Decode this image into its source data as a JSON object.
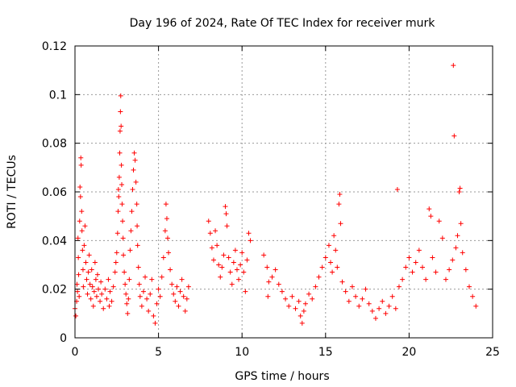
{
  "chart_data": {
    "type": "scatter",
    "title": "Day 196 of 2024, Rate Of TEC Index for receiver murk",
    "xlabel": "GPS time / hours",
    "ylabel": "ROTI / TECUs",
    "xlim": [
      0,
      25
    ],
    "ylim": [
      0,
      0.12
    ],
    "x_ticks": [
      0,
      5,
      10,
      15,
      20,
      25
    ],
    "x_tick_labels": [
      "0",
      "5",
      "10",
      "15",
      "20",
      "25"
    ],
    "y_ticks": [
      0,
      0.02,
      0.04,
      0.06,
      0.08,
      0.1,
      0.12
    ],
    "y_tick_labels": [
      "0",
      "0.02",
      "0.04",
      "0.06",
      "0.08",
      "0.1",
      "0.12"
    ],
    "grid": true,
    "marker": "plus",
    "color": "#ff0000",
    "series": [
      {
        "name": "ROTI",
        "points": [
          [
            0.0,
            0.012
          ],
          [
            0.05,
            0.009
          ],
          [
            0.1,
            0.015
          ],
          [
            0.12,
            0.022
          ],
          [
            0.15,
            0.019
          ],
          [
            0.18,
            0.041
          ],
          [
            0.2,
            0.033
          ],
          [
            0.22,
            0.026
          ],
          [
            0.25,
            0.017
          ],
          [
            0.28,
            0.048
          ],
          [
            0.3,
            0.062
          ],
          [
            0.33,
            0.058
          ],
          [
            0.35,
            0.074
          ],
          [
            0.37,
            0.071
          ],
          [
            0.4,
            0.052
          ],
          [
            0.42,
            0.044
          ],
          [
            0.45,
            0.036
          ],
          [
            0.48,
            0.028
          ],
          [
            0.5,
            0.021
          ],
          [
            0.55,
            0.038
          ],
          [
            0.6,
            0.046
          ],
          [
            0.65,
            0.031
          ],
          [
            0.7,
            0.024
          ],
          [
            0.75,
            0.018
          ],
          [
            0.8,
            0.027
          ],
          [
            0.85,
            0.034
          ],
          [
            0.9,
            0.022
          ],
          [
            0.95,
            0.016
          ],
          [
            1.0,
            0.028
          ],
          [
            1.05,
            0.021
          ],
          [
            1.1,
            0.013
          ],
          [
            1.15,
            0.019
          ],
          [
            1.2,
            0.031
          ],
          [
            1.25,
            0.024
          ],
          [
            1.3,
            0.017
          ],
          [
            1.35,
            0.026
          ],
          [
            1.4,
            0.02
          ],
          [
            1.5,
            0.015
          ],
          [
            1.55,
            0.023
          ],
          [
            1.6,
            0.018
          ],
          [
            1.7,
            0.012
          ],
          [
            1.8,
            0.02
          ],
          [
            1.9,
            0.016
          ],
          [
            2.0,
            0.024
          ],
          [
            2.05,
            0.013
          ],
          [
            2.1,
            0.019
          ],
          [
            2.2,
            0.015
          ],
          [
            2.3,
            0.021
          ],
          [
            2.4,
            0.027
          ],
          [
            2.45,
            0.031
          ],
          [
            2.5,
            0.035
          ],
          [
            2.55,
            0.043
          ],
          [
            2.58,
            0.052
          ],
          [
            2.6,
            0.061
          ],
          [
            2.62,
            0.058
          ],
          [
            2.65,
            0.066
          ],
          [
            2.68,
            0.076
          ],
          [
            2.7,
            0.085
          ],
          [
            2.72,
            0.093
          ],
          [
            2.74,
            0.0995
          ],
          [
            2.76,
            0.087
          ],
          [
            2.78,
            0.071
          ],
          [
            2.8,
            0.063
          ],
          [
            2.82,
            0.055
          ],
          [
            2.85,
            0.048
          ],
          [
            2.88,
            0.041
          ],
          [
            2.9,
            0.034
          ],
          [
            2.95,
            0.027
          ],
          [
            3.0,
            0.022
          ],
          [
            3.05,
            0.018
          ],
          [
            3.1,
            0.014
          ],
          [
            3.15,
            0.01
          ],
          [
            3.2,
            0.016
          ],
          [
            3.25,
            0.024
          ],
          [
            3.3,
            0.036
          ],
          [
            3.35,
            0.044
          ],
          [
            3.4,
            0.052
          ],
          [
            3.45,
            0.061
          ],
          [
            3.5,
            0.069
          ],
          [
            3.55,
            0.076
          ],
          [
            3.6,
            0.073
          ],
          [
            3.65,
            0.064
          ],
          [
            3.7,
            0.055
          ],
          [
            3.72,
            0.046
          ],
          [
            3.75,
            0.038
          ],
          [
            3.8,
            0.029
          ],
          [
            3.85,
            0.022
          ],
          [
            3.9,
            0.017
          ],
          [
            4.0,
            0.013
          ],
          [
            4.1,
            0.019
          ],
          [
            4.2,
            0.025
          ],
          [
            4.3,
            0.016
          ],
          [
            4.4,
            0.011
          ],
          [
            4.5,
            0.018
          ],
          [
            4.6,
            0.024
          ],
          [
            4.7,
            0.009
          ],
          [
            4.8,
            0.006
          ],
          [
            4.9,
            0.014
          ],
          [
            5.0,
            0.02
          ],
          [
            5.1,
            0.017
          ],
          [
            5.2,
            0.025
          ],
          [
            5.3,
            0.033
          ],
          [
            5.4,
            0.044
          ],
          [
            5.45,
            0.055
          ],
          [
            5.5,
            0.049
          ],
          [
            5.55,
            0.041
          ],
          [
            5.6,
            0.035
          ],
          [
            5.7,
            0.028
          ],
          [
            5.8,
            0.022
          ],
          [
            5.9,
            0.018
          ],
          [
            6.0,
            0.015
          ],
          [
            6.1,
            0.021
          ],
          [
            6.2,
            0.013
          ],
          [
            6.3,
            0.019
          ],
          [
            6.4,
            0.024
          ],
          [
            6.5,
            0.017
          ],
          [
            6.6,
            0.011
          ],
          [
            6.7,
            0.016
          ],
          [
            6.8,
            0.021
          ],
          [
            8.0,
            0.048
          ],
          [
            8.1,
            0.043
          ],
          [
            8.2,
            0.037
          ],
          [
            8.3,
            0.032
          ],
          [
            8.4,
            0.044
          ],
          [
            8.5,
            0.038
          ],
          [
            8.6,
            0.03
          ],
          [
            8.7,
            0.025
          ],
          [
            8.8,
            0.029
          ],
          [
            8.9,
            0.034
          ],
          [
            9.0,
            0.054
          ],
          [
            9.05,
            0.051
          ],
          [
            9.1,
            0.046
          ],
          [
            9.2,
            0.033
          ],
          [
            9.3,
            0.027
          ],
          [
            9.4,
            0.022
          ],
          [
            9.5,
            0.031
          ],
          [
            9.6,
            0.036
          ],
          [
            9.7,
            0.028
          ],
          [
            9.8,
            0.024
          ],
          [
            9.9,
            0.03
          ],
          [
            10.0,
            0.035
          ],
          [
            10.1,
            0.027
          ],
          [
            10.2,
            0.019
          ],
          [
            10.3,
            0.032
          ],
          [
            10.4,
            0.043
          ],
          [
            10.5,
            0.04
          ],
          [
            11.3,
            0.034
          ],
          [
            11.5,
            0.029
          ],
          [
            11.55,
            0.017
          ],
          [
            11.6,
            0.023
          ],
          [
            11.8,
            0.025
          ],
          [
            12.0,
            0.028
          ],
          [
            12.2,
            0.022
          ],
          [
            12.4,
            0.019
          ],
          [
            12.6,
            0.016
          ],
          [
            12.8,
            0.013
          ],
          [
            13.0,
            0.017
          ],
          [
            13.2,
            0.012
          ],
          [
            13.4,
            0.015
          ],
          [
            13.5,
            0.009
          ],
          [
            13.6,
            0.006
          ],
          [
            13.7,
            0.011
          ],
          [
            13.8,
            0.014
          ],
          [
            14.0,
            0.018
          ],
          [
            14.2,
            0.016
          ],
          [
            14.4,
            0.021
          ],
          [
            14.6,
            0.025
          ],
          [
            14.8,
            0.029
          ],
          [
            15.0,
            0.033
          ],
          [
            15.2,
            0.038
          ],
          [
            15.3,
            0.031
          ],
          [
            15.4,
            0.027
          ],
          [
            15.5,
            0.042
          ],
          [
            15.6,
            0.036
          ],
          [
            15.7,
            0.029
          ],
          [
            15.8,
            0.055
          ],
          [
            15.85,
            0.059
          ],
          [
            15.9,
            0.047
          ],
          [
            16.0,
            0.023
          ],
          [
            16.2,
            0.019
          ],
          [
            16.4,
            0.015
          ],
          [
            16.6,
            0.021
          ],
          [
            16.8,
            0.017
          ],
          [
            17.0,
            0.013
          ],
          [
            17.2,
            0.016
          ],
          [
            17.4,
            0.02
          ],
          [
            17.6,
            0.014
          ],
          [
            17.8,
            0.011
          ],
          [
            18.0,
            0.008
          ],
          [
            18.2,
            0.012
          ],
          [
            18.4,
            0.015
          ],
          [
            18.6,
            0.01
          ],
          [
            18.8,
            0.013
          ],
          [
            19.0,
            0.017
          ],
          [
            19.2,
            0.012
          ],
          [
            19.3,
            0.061
          ],
          [
            19.4,
            0.021
          ],
          [
            19.6,
            0.024
          ],
          [
            19.8,
            0.029
          ],
          [
            20.0,
            0.033
          ],
          [
            20.2,
            0.027
          ],
          [
            20.4,
            0.031
          ],
          [
            20.6,
            0.036
          ],
          [
            20.8,
            0.029
          ],
          [
            21.0,
            0.024
          ],
          [
            21.2,
            0.053
          ],
          [
            21.3,
            0.05
          ],
          [
            21.4,
            0.033
          ],
          [
            21.6,
            0.027
          ],
          [
            21.8,
            0.048
          ],
          [
            22.0,
            0.041
          ],
          [
            22.2,
            0.024
          ],
          [
            22.4,
            0.028
          ],
          [
            22.6,
            0.032
          ],
          [
            22.65,
            0.112
          ],
          [
            22.7,
            0.083
          ],
          [
            22.8,
            0.037
          ],
          [
            22.9,
            0.042
          ],
          [
            23.0,
            0.06
          ],
          [
            23.05,
            0.0615
          ],
          [
            23.1,
            0.047
          ],
          [
            23.2,
            0.035
          ],
          [
            23.4,
            0.028
          ],
          [
            23.6,
            0.021
          ],
          [
            23.8,
            0.017
          ],
          [
            24.0,
            0.013
          ]
        ]
      }
    ]
  }
}
